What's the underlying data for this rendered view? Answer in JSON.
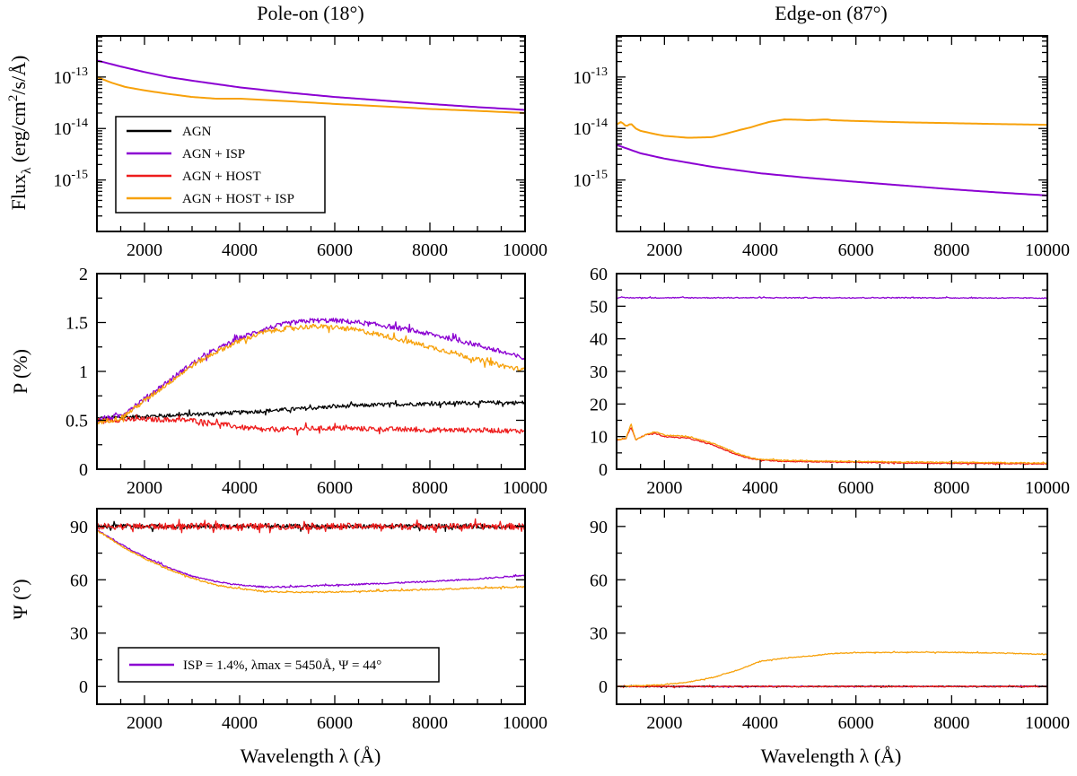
{
  "figure": {
    "col_titles": [
      "Pole-on (18°)",
      "Edge-on (87°)"
    ],
    "ylabels": {
      "flux": "Flux",
      "flux_sub": "λ",
      "flux_units_a": " (erg/cm",
      "flux_units_sup": "2",
      "flux_units_b": "/s/Å)",
      "pol": "P (%)",
      "angle": "Ψ (°)"
    },
    "xlabel": "Wavelength λ (Å)"
  },
  "chart_data": [
    {
      "id": "flux_pole",
      "type": "line",
      "title": "Pole-on (18°)",
      "xlim": [
        1000,
        10000
      ],
      "yscale": "log",
      "ylim": [
        1e-16,
        6.3e-13
      ],
      "xticks": [
        2000,
        4000,
        6000,
        8000,
        10000
      ],
      "yticks": [
        {
          "v": 1e-13,
          "base": "10",
          "exp": "-13"
        },
        {
          "v": 1e-14,
          "base": "10",
          "exp": "-14"
        },
        {
          "v": 1e-15,
          "base": "10",
          "exp": "-15"
        }
      ],
      "legend": [
        {
          "label": "AGN",
          "color": "#000000"
        },
        {
          "label": "AGN + ISP",
          "color": "#8b00d2"
        },
        {
          "label": "AGN + HOST",
          "color": "#ee1c1c"
        },
        {
          "label": "AGN + HOST + ISP",
          "color": "#f7a10a"
        }
      ],
      "series": [
        {
          "name": "AGN + ISP",
          "color": "#8b00d2",
          "x": [
            1000,
            1500,
            2000,
            2500,
            3000,
            4000,
            5000,
            6000,
            7000,
            8000,
            9000,
            10000
          ],
          "y": [
            2.1e-13,
            1.6e-13,
            1.25e-13,
            1e-13,
            8.5e-14,
            6.3e-14,
            5e-14,
            4.1e-14,
            3.5e-14,
            3e-14,
            2.6e-14,
            2.3e-14
          ]
        },
        {
          "name": "AGN + HOST + ISP",
          "color": "#f7a10a",
          "x": [
            1000,
            1300,
            1600,
            2000,
            2500,
            3000,
            3500,
            4000,
            4500,
            5000,
            5500,
            6000,
            7000,
            8000,
            9000,
            10000
          ],
          "y": [
            1e-13,
            7.8e-14,
            6.4e-14,
            5.5e-14,
            4.7e-14,
            4.1e-14,
            3.8e-14,
            3.8e-14,
            3.6e-14,
            3.4e-14,
            3.2e-14,
            3e-14,
            2.7e-14,
            2.4e-14,
            2.2e-14,
            2e-14
          ]
        }
      ]
    },
    {
      "id": "flux_edge",
      "type": "line",
      "title": "Edge-on (87°)",
      "xlim": [
        1000,
        10000
      ],
      "yscale": "log",
      "ylim": [
        1e-16,
        6.3e-13
      ],
      "xticks": [
        2000,
        4000,
        6000,
        8000,
        10000
      ],
      "yticks": [
        {
          "v": 1e-13,
          "base": "10",
          "exp": "-13"
        },
        {
          "v": 1e-14,
          "base": "10",
          "exp": "-14"
        },
        {
          "v": 1e-15,
          "base": "10",
          "exp": "-15"
        }
      ],
      "series": [
        {
          "name": "AGN + ISP",
          "color": "#8b00d2",
          "x": [
            1000,
            1500,
            2000,
            3000,
            4000,
            5000,
            6000,
            7000,
            8000,
            9000,
            10000
          ],
          "y": [
            4.8e-15,
            3.3e-15,
            2.6e-15,
            1.8e-15,
            1.35e-15,
            1.1e-15,
            9.2e-16,
            7.8e-16,
            6.6e-16,
            5.7e-16,
            5e-16
          ]
        },
        {
          "name": "AGN + HOST + ISP",
          "color": "#f7a10a",
          "x": [
            1000,
            1100,
            1200,
            1300,
            1400,
            1500,
            1800,
            2000,
            2500,
            3000,
            3300,
            3600,
            3800,
            4000,
            4200,
            4500,
            4800,
            5000,
            5400,
            5500,
            6000,
            7000,
            8000,
            9000,
            10000
          ],
          "y": [
            1.2e-14,
            1.35e-14,
            1.1e-14,
            1.25e-14,
            1e-14,
            9e-15,
            7.8e-15,
            7.2e-15,
            6.6e-15,
            6.8e-15,
            8e-15,
            9.5e-15,
            1.05e-14,
            1.2e-14,
            1.35e-14,
            1.5e-14,
            1.48e-14,
            1.45e-14,
            1.5e-14,
            1.45e-14,
            1.4e-14,
            1.32e-14,
            1.27e-14,
            1.22e-14,
            1.18e-14
          ]
        }
      ]
    },
    {
      "id": "pol_pole",
      "type": "line",
      "xlim": [
        1000,
        10000
      ],
      "ylim": [
        0,
        2
      ],
      "xticks": [
        2000,
        4000,
        6000,
        8000,
        10000
      ],
      "yticks": [
        {
          "v": 0,
          "label": "0"
        },
        {
          "v": 0.5,
          "label": "0.5"
        },
        {
          "v": 1,
          "label": "1"
        },
        {
          "v": 1.5,
          "label": "1.5"
        },
        {
          "v": 2,
          "label": "2"
        }
      ],
      "series": [
        {
          "name": "AGN",
          "color": "#000000",
          "noise": 0.02,
          "x": [
            1000,
            2000,
            3000,
            4000,
            5000,
            6000,
            7000,
            8000,
            9000,
            10000
          ],
          "y": [
            0.52,
            0.54,
            0.56,
            0.58,
            0.61,
            0.64,
            0.66,
            0.67,
            0.68,
            0.68
          ]
        },
        {
          "name": "AGN + HOST",
          "color": "#ee1c1c",
          "noise": 0.025,
          "x": [
            1000,
            2000,
            3000,
            3500,
            4000,
            4500,
            5000,
            6000,
            7000,
            8000,
            9000,
            10000
          ],
          "y": [
            0.5,
            0.51,
            0.5,
            0.47,
            0.43,
            0.4,
            0.41,
            0.42,
            0.41,
            0.4,
            0.4,
            0.39
          ]
        },
        {
          "name": "AGN + ISP",
          "color": "#8b00d2",
          "noise": 0.025,
          "x": [
            1000,
            1500,
            2000,
            2500,
            3000,
            3500,
            4000,
            4500,
            5000,
            5500,
            6000,
            6500,
            7000,
            7500,
            8000,
            8500,
            9000,
            9500,
            10000
          ],
          "y": [
            0.5,
            0.55,
            0.72,
            0.9,
            1.08,
            1.22,
            1.34,
            1.43,
            1.49,
            1.52,
            1.52,
            1.5,
            1.47,
            1.43,
            1.38,
            1.33,
            1.27,
            1.2,
            1.13
          ]
        },
        {
          "name": "AGN + HOST + ISP",
          "color": "#f7a10a",
          "noise": 0.025,
          "x": [
            1000,
            1500,
            2000,
            2500,
            3000,
            3500,
            4000,
            4500,
            5000,
            5500,
            6000,
            6500,
            7000,
            7500,
            8000,
            8500,
            9000,
            9500,
            10000
          ],
          "y": [
            0.48,
            0.52,
            0.7,
            0.88,
            1.06,
            1.2,
            1.31,
            1.4,
            1.44,
            1.46,
            1.45,
            1.42,
            1.37,
            1.31,
            1.25,
            1.19,
            1.12,
            1.06,
            1.01
          ]
        }
      ]
    },
    {
      "id": "pol_edge",
      "type": "line",
      "xlim": [
        1000,
        10000
      ],
      "ylim": [
        0,
        60
      ],
      "xticks": [
        2000,
        4000,
        6000,
        8000,
        10000
      ],
      "yticks": [
        {
          "v": 0,
          "label": "0"
        },
        {
          "v": 10,
          "label": "10"
        },
        {
          "v": 20,
          "label": "20"
        },
        {
          "v": 30,
          "label": "30"
        },
        {
          "v": 40,
          "label": "40"
        },
        {
          "v": 50,
          "label": "50"
        },
        {
          "v": 60,
          "label": "60"
        }
      ],
      "series": [
        {
          "name": "AGN + HOST",
          "color": "#ee1c1c",
          "noise": 0.15,
          "x": [
            1000,
            1200,
            1300,
            1400,
            1600,
            1800,
            2000,
            2500,
            3000,
            3500,
            3800,
            4000,
            4500,
            5000,
            6000,
            7000,
            8000,
            9000,
            10000
          ],
          "y": [
            9,
            9.5,
            13,
            9,
            10.5,
            11,
            10,
            9.5,
            7.5,
            4.5,
            3.3,
            2.8,
            2.4,
            2.3,
            2.1,
            1.9,
            1.8,
            1.7,
            1.6
          ]
        },
        {
          "name": "AGN + HOST + ISP",
          "color": "#f7a10a",
          "noise": 0.15,
          "x": [
            1000,
            1200,
            1300,
            1400,
            1600,
            1800,
            2000,
            2500,
            3000,
            3500,
            3800,
            4000,
            4500,
            5000,
            6000,
            7000,
            8000,
            9000,
            10000
          ],
          "y": [
            9,
            9.5,
            14,
            9,
            10.5,
            11.5,
            10.5,
            10,
            8,
            5,
            3.5,
            3.0,
            2.7,
            2.6,
            2.4,
            2.2,
            2.1,
            2.0,
            1.9
          ]
        },
        {
          "name": "AGN + ISP",
          "color": "#8b00d2",
          "noise": 0.15,
          "x": [
            1000,
            4000,
            7000,
            10000
          ],
          "y": [
            52.6,
            52.6,
            52.6,
            52.5
          ]
        }
      ]
    },
    {
      "id": "angle_pole",
      "type": "line",
      "xlim": [
        1000,
        10000
      ],
      "ylim": [
        -10,
        100
      ],
      "xticks": [
        2000,
        4000,
        6000,
        8000,
        10000
      ],
      "yticks": [
        {
          "v": 0,
          "label": "0"
        },
        {
          "v": 30,
          "label": "30"
        },
        {
          "v": 60,
          "label": "60"
        },
        {
          "v": 90,
          "label": "90"
        }
      ],
      "annotation": {
        "label": "ISP = 1.4%, λmax = 5450Å, Ψ = 44°",
        "color": "#8b00d2"
      },
      "series": [
        {
          "name": "AGN",
          "color": "#000000",
          "noise": 1.2,
          "x": [
            1000,
            10000
          ],
          "y": [
            90,
            90
          ]
        },
        {
          "name": "AGN + HOST",
          "color": "#ee1c1c",
          "noise": 1.8,
          "x": [
            1000,
            10000
          ],
          "y": [
            90,
            90
          ]
        },
        {
          "name": "AGN + ISP",
          "color": "#8b00d2",
          "noise": 0.4,
          "x": [
            1000,
            1500,
            2000,
            2500,
            3000,
            3500,
            4000,
            4500,
            5000,
            5500,
            6000,
            7000,
            8000,
            9000,
            10000
          ],
          "y": [
            88,
            80,
            73,
            67,
            62,
            59,
            57,
            56,
            56,
            56.5,
            57,
            58,
            59,
            60.5,
            62.5
          ]
        },
        {
          "name": "AGN + HOST + ISP",
          "color": "#f7a10a",
          "noise": 0.4,
          "x": [
            1000,
            1500,
            2000,
            2500,
            3000,
            3500,
            4000,
            4500,
            5000,
            5500,
            6000,
            7000,
            8000,
            9000,
            10000
          ],
          "y": [
            88,
            79,
            72,
            66,
            61,
            57,
            55,
            53.5,
            53,
            53,
            53.2,
            53.8,
            54.5,
            55.3,
            56
          ]
        }
      ]
    },
    {
      "id": "angle_edge",
      "type": "line",
      "xlim": [
        1000,
        10000
      ],
      "ylim": [
        -10,
        100
      ],
      "xticks": [
        2000,
        4000,
        6000,
        8000,
        10000
      ],
      "yticks": [
        {
          "v": 0,
          "label": "0"
        },
        {
          "v": 30,
          "label": "30"
        },
        {
          "v": 60,
          "label": "60"
        },
        {
          "v": 90,
          "label": "90"
        }
      ],
      "series": [
        {
          "name": "AGN + ISP",
          "color": "#8b00d2",
          "noise": 0.25,
          "x": [
            1000,
            10000
          ],
          "y": [
            0,
            0
          ]
        },
        {
          "name": "AGN",
          "color": "#000000",
          "noise": 0.25,
          "x": [
            1000,
            10000
          ],
          "y": [
            0,
            0
          ]
        },
        {
          "name": "AGN + HOST",
          "color": "#ee1c1c",
          "noise": 0.3,
          "x": [
            1000,
            10000
          ],
          "y": [
            0,
            0
          ]
        },
        {
          "name": "AGN + HOST + ISP",
          "color": "#f7a10a",
          "noise": 0.25,
          "x": [
            1000,
            1500,
            2000,
            2500,
            3000,
            3500,
            4000,
            4500,
            5000,
            5500,
            6000,
            7000,
            8000,
            9000,
            10000
          ],
          "y": [
            0,
            0.5,
            1,
            2.5,
            5,
            9,
            14,
            16,
            17,
            18.5,
            19,
            19.2,
            19.2,
            18.8,
            18
          ]
        }
      ]
    }
  ]
}
